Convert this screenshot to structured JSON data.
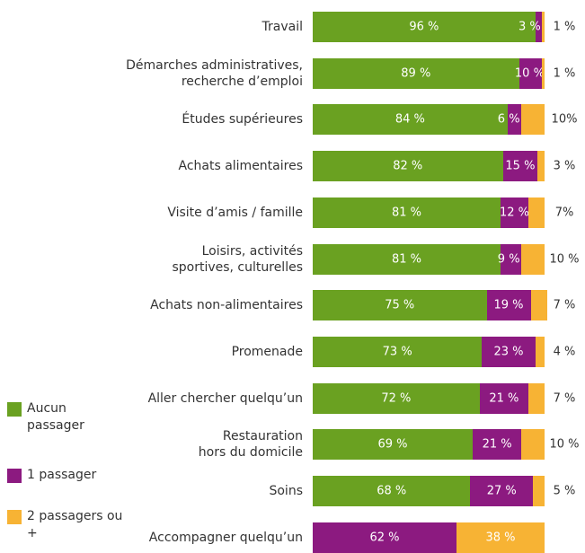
{
  "chart_data": {
    "type": "stacked-bar-horizontal",
    "categories": [
      "Travail",
      "Démarches administratives,\nrecherche d’emploi",
      "Études supérieures",
      "Achats alimentaires",
      "Visite d’amis / famille",
      "Loisirs, activités\nsportives, culturelles",
      "Achats non-alimentaires",
      "Promenade",
      "Aller chercher quelqu’un",
      "Restauration\nhors du domicile",
      "Soins",
      "Accompagner quelqu’un"
    ],
    "xlim": [
      0,
      100
    ],
    "legend": "bottom-left",
    "series": [
      {
        "name": "Aucun passager",
        "color": "#6aa121",
        "values": [
          96,
          89,
          84,
          82,
          81,
          81,
          75,
          73,
          72,
          69,
          68,
          0
        ],
        "value_labels": [
          "96 %",
          "89 %",
          "84 %",
          "82 %",
          "81 %",
          "81 %",
          "75 %",
          "73 %",
          "72 %",
          "69 %",
          "68 %",
          null
        ]
      },
      {
        "name": "1 passager",
        "color": "#8c1a80",
        "values": [
          3,
          10,
          6,
          15,
          12,
          9,
          19,
          23,
          21,
          21,
          27,
          62
        ],
        "value_labels": [
          "3 %",
          "10 %",
          "6 %",
          "15 %",
          "12 %",
          "9 %",
          "19 %",
          "23 %",
          "21 %",
          "21 %",
          "27 %",
          "62 %"
        ]
      },
      {
        "name": "2 passagers ou +",
        "color": "#f7b334",
        "values": [
          1,
          1,
          10,
          3,
          7,
          10,
          7,
          4,
          7,
          10,
          5,
          38
        ],
        "value_labels": [
          "1 %",
          "1 %",
          "10%",
          "3 %",
          "7%",
          "10 %",
          "7 %",
          "4 %",
          "7 %",
          "10 %",
          "5 %",
          "38 %"
        ]
      }
    ]
  }
}
